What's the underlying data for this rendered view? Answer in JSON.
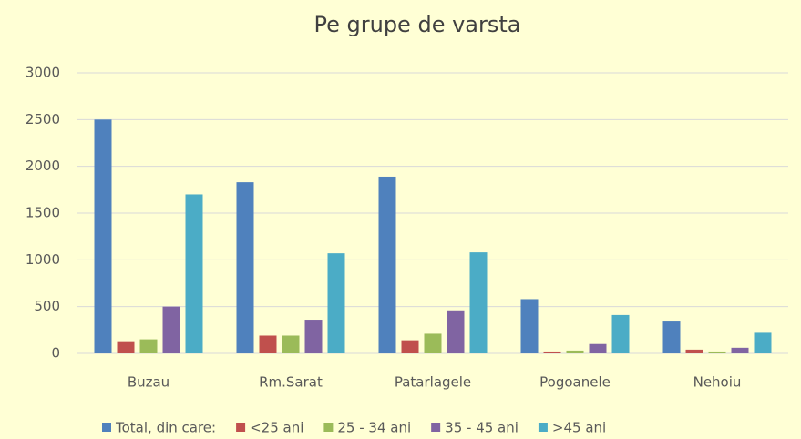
{
  "chart_data": {
    "type": "bar",
    "title": "Pe grupe de varsta",
    "categories": [
      "Buzau",
      "Rm.Sarat",
      "Patarlagele",
      "Pogoanele",
      "Nehoiu"
    ],
    "series": [
      {
        "name": "Total, din care:",
        "color": "#4f81bd",
        "values": [
          2500,
          1830,
          1890,
          580,
          350
        ]
      },
      {
        "name": "<25 ani",
        "color": "#c0504d",
        "values": [
          130,
          190,
          140,
          20,
          40
        ]
      },
      {
        "name": "25 - 34 ani",
        "color": "#9bbb59",
        "values": [
          150,
          190,
          210,
          30,
          20
        ]
      },
      {
        "name": "35 - 45 ani",
        "color": "#8064a2",
        "values": [
          500,
          360,
          460,
          100,
          60
        ]
      },
      {
        "name": ">45 ani",
        "color": "#4bacc6",
        "values": [
          1700,
          1070,
          1080,
          410,
          220
        ]
      }
    ],
    "ylim": [
      0,
      3000
    ],
    "yticks": [
      0,
      500,
      1000,
      1500,
      2000,
      2500,
      3000
    ],
    "grid": true,
    "legend": "bottom"
  }
}
